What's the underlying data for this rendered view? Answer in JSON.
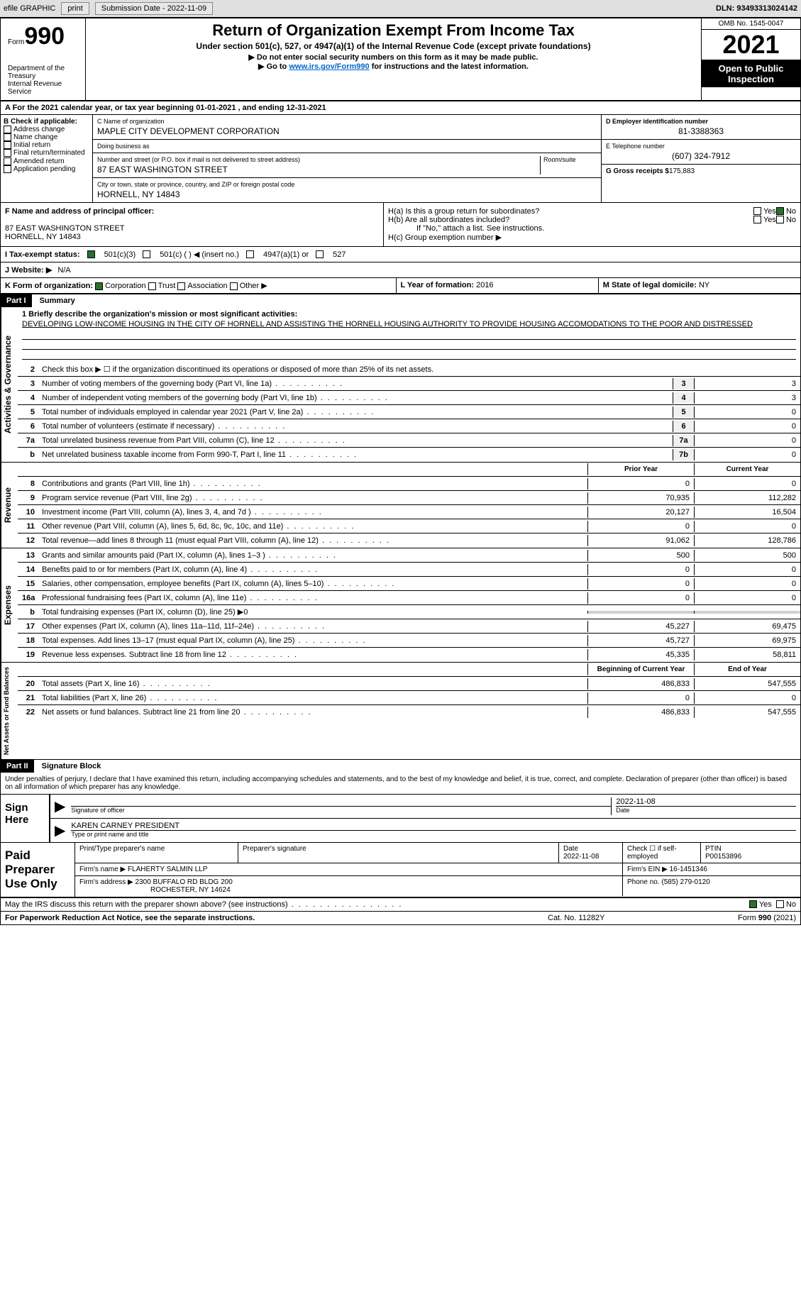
{
  "header": {
    "efile": "efile GRAPHIC",
    "print": "print",
    "sub_label": "Submission Date - 2022-11-09",
    "dln": "DLN: 93493313024142"
  },
  "form": {
    "form_label": "Form",
    "form_num": "990",
    "dept": "Department of the Treasury",
    "irs": "Internal Revenue Service",
    "title": "Return of Organization Exempt From Income Tax",
    "subtitle": "Under section 501(c), 527, or 4947(a)(1) of the Internal Revenue Code (except private foundations)",
    "instr1": "▶ Do not enter social security numbers on this form as it may be made public.",
    "instr2_pre": "▶ Go to ",
    "instr2_link": "www.irs.gov/Form990",
    "instr2_post": " for instructions and the latest information.",
    "omb": "OMB No. 1545-0047",
    "year": "2021",
    "open": "Open to Public Inspection"
  },
  "period": {
    "text": "A For the 2021 calendar year, or tax year beginning 01-01-2021    , and ending 12-31-2021"
  },
  "section_b": {
    "label": "B Check if applicable:",
    "opts": [
      "Address change",
      "Name change",
      "Initial return",
      "Final return/terminated",
      "Amended return",
      "Application pending"
    ]
  },
  "section_c": {
    "name_label": "C Name of organization",
    "name": "MAPLE CITY DEVELOPMENT CORPORATION",
    "dba_label": "Doing business as",
    "addr_label": "Number and street (or P.O. box if mail is not delivered to street address)",
    "room_label": "Room/suite",
    "addr": "87 EAST WASHINGTON STREET",
    "city_label": "City or town, state or province, country, and ZIP or foreign postal code",
    "city": "HORNELL, NY  14843"
  },
  "section_d": {
    "ein_label": "D Employer identification number",
    "ein": "81-3388363",
    "tel_label": "E Telephone number",
    "tel": "(607) 324-7912",
    "gross_label": "G Gross receipts $",
    "gross": "175,883"
  },
  "section_f": {
    "label": "F Name and address of principal officer:",
    "addr1": "87 EAST WASHINGTON STREET",
    "addr2": "HORNELL, NY  14843"
  },
  "section_h": {
    "ha": "H(a)  Is this a group return for subordinates?",
    "hb": "H(b)  Are all subordinates included?",
    "hb_note": "If \"No,\" attach a list. See instructions.",
    "hc": "H(c)  Group exemption number ▶"
  },
  "status": {
    "i_label": "I  Tax-exempt status:",
    "opt1": "501(c)(3)",
    "opt2": "501(c) (   ) ◀ (insert no.)",
    "opt3": "4947(a)(1) or",
    "opt4": "527",
    "j_label": "J  Website: ▶",
    "j_val": "N/A"
  },
  "k_row": {
    "k_label": "K Form of organization:",
    "opts": [
      "Corporation",
      "Trust",
      "Association",
      "Other ▶"
    ],
    "l_label": "L Year of formation:",
    "l_val": "2016",
    "m_label": "M State of legal domicile:",
    "m_val": "NY"
  },
  "part1": {
    "header": "Part I",
    "title": "Summary",
    "line1_label": "1  Briefly describe the organization's mission or most significant activities:",
    "mission": "DEVELOPING LOW-INCOME HOUSING IN THE CITY OF HORNELL AND ASSISTING THE HORNELL HOUSING AUTHORITY TO PROVIDE HOUSING ACCOMODATIONS TO THE POOR AND DISTRESSED",
    "line2": "Check this box ▶ ☐ if the organization discontinued its operations or disposed of more than 25% of its net assets.",
    "side_ag": "Activities & Governance",
    "side_rev": "Revenue",
    "side_exp": "Expenses",
    "side_na": "Net Assets or Fund Balances",
    "col_prior": "Prior Year",
    "col_current": "Current Year",
    "col_begin": "Beginning of Current Year",
    "col_end": "End of Year",
    "lines_ag": [
      {
        "n": "3",
        "t": "Number of voting members of the governing body (Part VI, line 1a)",
        "box": "3",
        "v": "3"
      },
      {
        "n": "4",
        "t": "Number of independent voting members of the governing body (Part VI, line 1b)",
        "box": "4",
        "v": "3"
      },
      {
        "n": "5",
        "t": "Total number of individuals employed in calendar year 2021 (Part V, line 2a)",
        "box": "5",
        "v": "0"
      },
      {
        "n": "6",
        "t": "Total number of volunteers (estimate if necessary)",
        "box": "6",
        "v": "0"
      },
      {
        "n": "7a",
        "t": "Total unrelated business revenue from Part VIII, column (C), line 12",
        "box": "7a",
        "v": "0"
      },
      {
        "n": "b",
        "t": "Net unrelated business taxable income from Form 990-T, Part I, line 11",
        "box": "7b",
        "v": "0"
      }
    ],
    "lines_rev": [
      {
        "n": "8",
        "t": "Contributions and grants (Part VIII, line 1h)",
        "p": "0",
        "c": "0"
      },
      {
        "n": "9",
        "t": "Program service revenue (Part VIII, line 2g)",
        "p": "70,935",
        "c": "112,282"
      },
      {
        "n": "10",
        "t": "Investment income (Part VIII, column (A), lines 3, 4, and 7d )",
        "p": "20,127",
        "c": "16,504"
      },
      {
        "n": "11",
        "t": "Other revenue (Part VIII, column (A), lines 5, 6d, 8c, 9c, 10c, and 11e)",
        "p": "0",
        "c": "0"
      },
      {
        "n": "12",
        "t": "Total revenue—add lines 8 through 11 (must equal Part VIII, column (A), line 12)",
        "p": "91,062",
        "c": "128,786"
      }
    ],
    "lines_exp": [
      {
        "n": "13",
        "t": "Grants and similar amounts paid (Part IX, column (A), lines 1–3 )",
        "p": "500",
        "c": "500"
      },
      {
        "n": "14",
        "t": "Benefits paid to or for members (Part IX, column (A), line 4)",
        "p": "0",
        "c": "0"
      },
      {
        "n": "15",
        "t": "Salaries, other compensation, employee benefits (Part IX, column (A), lines 5–10)",
        "p": "0",
        "c": "0"
      },
      {
        "n": "16a",
        "t": "Professional fundraising fees (Part IX, column (A), line 11e)",
        "p": "0",
        "c": "0"
      },
      {
        "n": "b",
        "t": "Total fundraising expenses (Part IX, column (D), line 25) ▶0",
        "shaded": true
      },
      {
        "n": "17",
        "t": "Other expenses (Part IX, column (A), lines 11a–11d, 11f–24e)",
        "p": "45,227",
        "c": "69,475"
      },
      {
        "n": "18",
        "t": "Total expenses. Add lines 13–17 (must equal Part IX, column (A), line 25)",
        "p": "45,727",
        "c": "69,975"
      },
      {
        "n": "19",
        "t": "Revenue less expenses. Subtract line 18 from line 12",
        "p": "45,335",
        "c": "58,811"
      }
    ],
    "lines_na": [
      {
        "n": "20",
        "t": "Total assets (Part X, line 16)",
        "p": "486,833",
        "c": "547,555"
      },
      {
        "n": "21",
        "t": "Total liabilities (Part X, line 26)",
        "p": "0",
        "c": "0"
      },
      {
        "n": "22",
        "t": "Net assets or fund balances. Subtract line 21 from line 20",
        "p": "486,833",
        "c": "547,555"
      }
    ]
  },
  "part2": {
    "header": "Part II",
    "title": "Signature Block",
    "decl": "Under penalties of perjury, I declare that I have examined this return, including accompanying schedules and statements, and to the best of my knowledge and belief, it is true, correct, and complete. Declaration of preparer (other than officer) is based on all information of which preparer has any knowledge.",
    "sign_here": "Sign Here",
    "sig_officer": "Signature of officer",
    "sig_date": "2022-11-08",
    "date_lbl": "Date",
    "name_title": "KAREN CARNEY PRESIDENT",
    "name_lbl": "Type or print name and title",
    "paid_label": "Paid Preparer Use Only",
    "prep_name_lbl": "Print/Type preparer's name",
    "prep_sig_lbl": "Preparer's signature",
    "prep_date_lbl": "Date",
    "prep_date": "2022-11-08",
    "check_lbl": "Check ☐ if self-employed",
    "ptin_lbl": "PTIN",
    "ptin": "P00153896",
    "firm_name_lbl": "Firm's name    ▶",
    "firm_name": "FLAHERTY SALMIN LLP",
    "firm_ein_lbl": "Firm's EIN ▶",
    "firm_ein": "16-1451346",
    "firm_addr_lbl": "Firm's address ▶",
    "firm_addr1": "2300 BUFFALO RD BLDG 200",
    "firm_addr2": "ROCHESTER, NY  14624",
    "phone_lbl": "Phone no.",
    "phone": "(585) 279-0120",
    "discuss": "May the IRS discuss this return with the preparer shown above? (see instructions)",
    "yes": "Yes",
    "no": "No"
  },
  "footer": {
    "pra": "For Paperwork Reduction Act Notice, see the separate instructions.",
    "cat": "Cat. No. 11282Y",
    "form": "Form 990 (2021)"
  }
}
